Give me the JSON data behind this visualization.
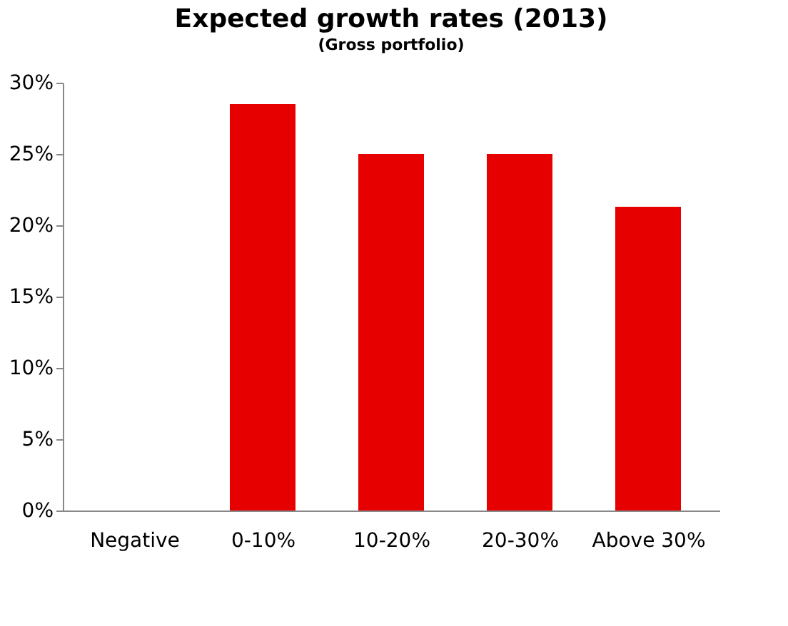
{
  "chart_data": {
    "type": "bar",
    "title": "Expected growth rates (2013)",
    "subtitle": "(Gross portfolio)",
    "categories": [
      "Negative",
      "0-10%",
      "10-20%",
      "20-30%",
      "Above 30%"
    ],
    "values": [
      0,
      28.5,
      25,
      25,
      21.3
    ],
    "color": "#e60000",
    "ylim": [
      0,
      30
    ],
    "yticks": [
      {
        "value": 0,
        "label": "0%"
      },
      {
        "value": 5,
        "label": "5%"
      },
      {
        "value": 10,
        "label": "10%"
      },
      {
        "value": 15,
        "label": "15%"
      },
      {
        "value": 20,
        "label": "20%"
      },
      {
        "value": 25,
        "label": "25%"
      },
      {
        "value": 30,
        "label": "30%"
      }
    ],
    "grid": false
  }
}
